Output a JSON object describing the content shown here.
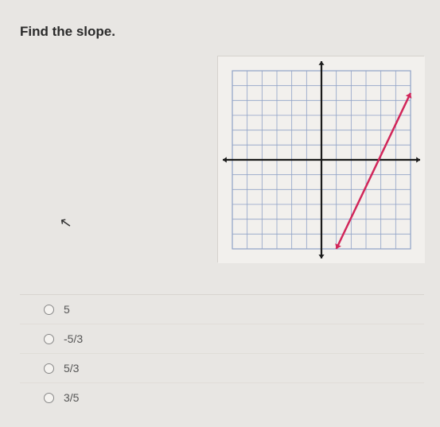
{
  "question": "Find the slope.",
  "options": [
    {
      "label": "5"
    },
    {
      "label": "-5/3"
    },
    {
      "label": "5/3"
    },
    {
      "label": "3/5"
    }
  ],
  "chart": {
    "type": "line-on-grid",
    "grid": {
      "xmin": -6,
      "xmax": 6,
      "ymin": -6,
      "ymax": 6,
      "step": 1,
      "grid_color": "#8fa2c7",
      "grid_stroke": 0.8,
      "axis_color": "#1a1a1a",
      "axis_stroke": 2.2,
      "background": "#f2f0ed",
      "arrow_size": 6
    },
    "line": {
      "points": [
        {
          "x": 1,
          "y": -6
        },
        {
          "x": 6,
          "y": 4.5
        }
      ],
      "color": "#d1265a",
      "stroke": 2.5,
      "arrows": "both"
    }
  },
  "colors": {
    "page_bg": "#e8e6e3",
    "text": "#2a2a2a"
  }
}
